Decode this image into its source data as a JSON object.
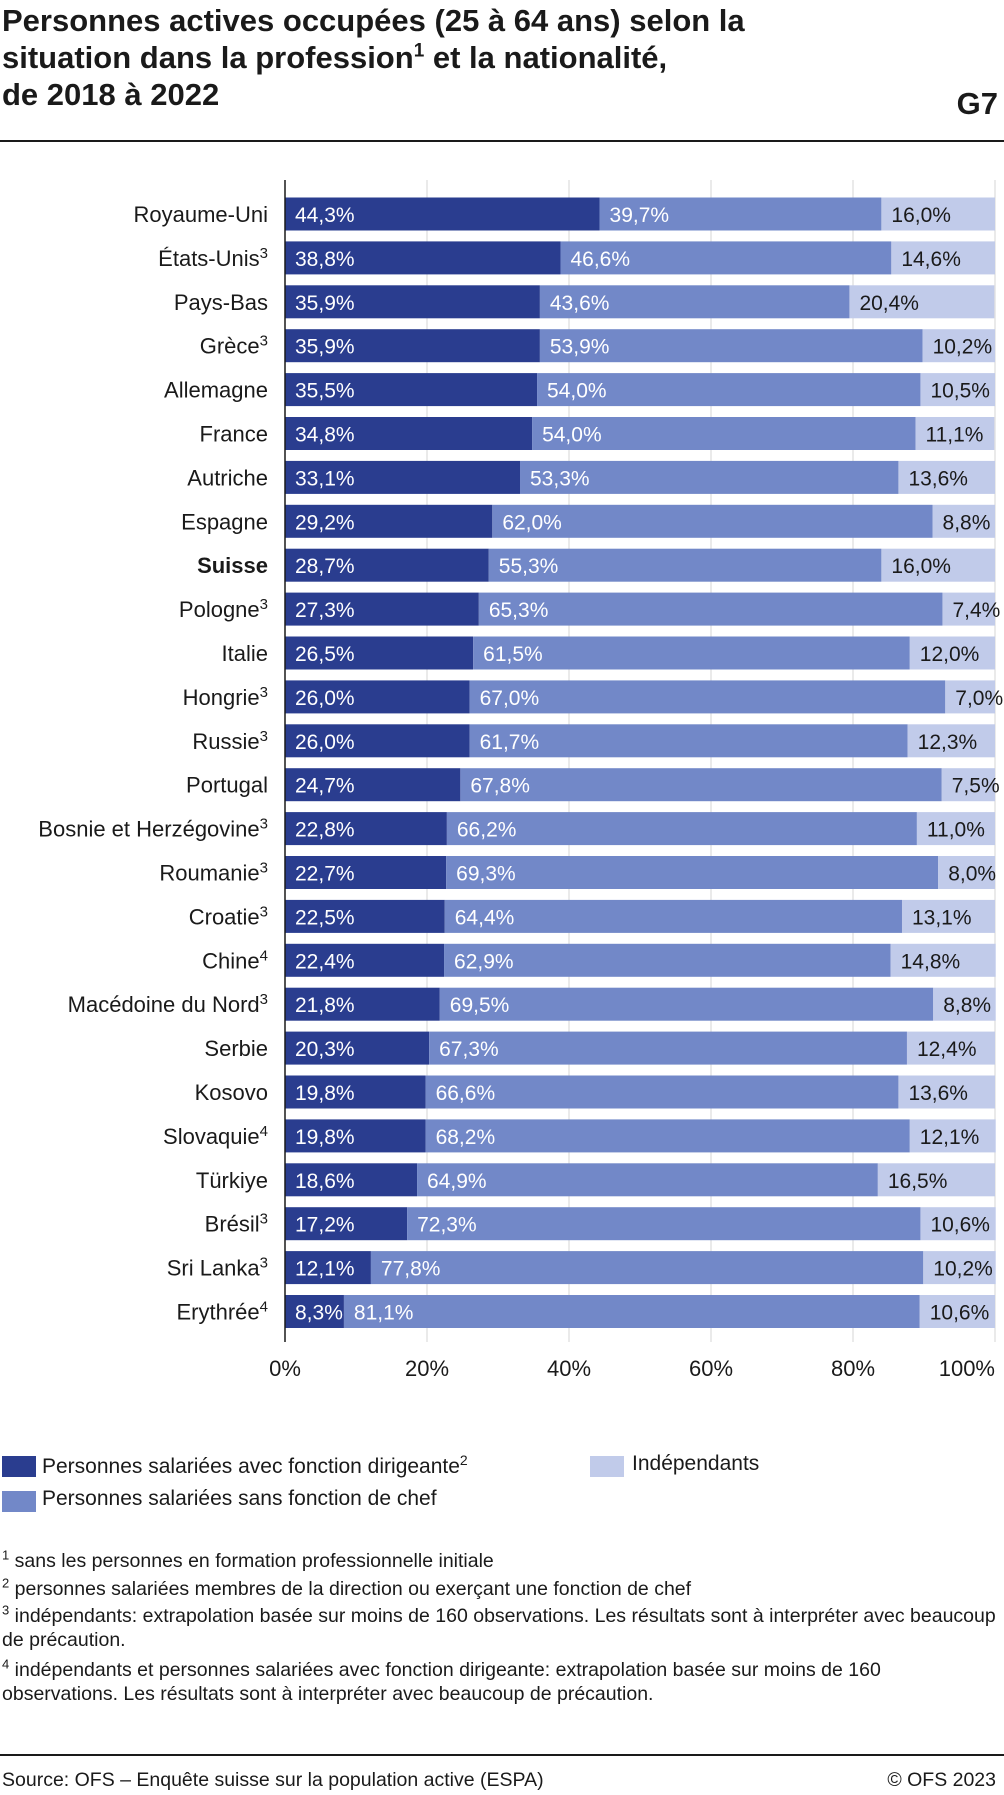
{
  "header": {
    "title_line1": "Personnes actives occupées (25 à 64 ans) selon la",
    "title_line2a": "situation dans la profession",
    "title_line2_sup": "1",
    "title_line2b": " et la nationalité,",
    "title_line3": "de 2018 à 2022",
    "chart_code": "G7"
  },
  "chart_data": {
    "type": "bar",
    "orientation": "horizontal",
    "stacked": true,
    "xlim": [
      0,
      100
    ],
    "ticks": [
      "0%",
      "20%",
      "40%",
      "60%",
      "80%",
      "100%"
    ],
    "grid": true,
    "categories": [
      {
        "label": "Royaume-Uni",
        "sup": ""
      },
      {
        "label": "États-Unis",
        "sup": "3"
      },
      {
        "label": "Pays-Bas",
        "sup": ""
      },
      {
        "label": "Grèce",
        "sup": "3"
      },
      {
        "label": "Allemagne",
        "sup": ""
      },
      {
        "label": "France",
        "sup": ""
      },
      {
        "label": "Autriche",
        "sup": ""
      },
      {
        "label": "Espagne",
        "sup": ""
      },
      {
        "label": "Suisse",
        "sup": "",
        "bold": true
      },
      {
        "label": "Pologne",
        "sup": "3"
      },
      {
        "label": "Italie",
        "sup": ""
      },
      {
        "label": "Hongrie",
        "sup": "3"
      },
      {
        "label": "Russie",
        "sup": "3"
      },
      {
        "label": "Portugal",
        "sup": ""
      },
      {
        "label": "Bosnie et Herzégovine",
        "sup": "3"
      },
      {
        "label": "Roumanie",
        "sup": "3"
      },
      {
        "label": "Croatie",
        "sup": "3"
      },
      {
        "label": "Chine",
        "sup": "4"
      },
      {
        "label": "Macédoine du Nord",
        "sup": "3"
      },
      {
        "label": "Serbie",
        "sup": ""
      },
      {
        "label": "Kosovo",
        "sup": ""
      },
      {
        "label": "Slovaquie",
        "sup": "4"
      },
      {
        "label": "Türkiye",
        "sup": ""
      },
      {
        "label": "Brésil",
        "sup": "3"
      },
      {
        "label": "Sri Lanka",
        "sup": "3"
      },
      {
        "label": "Erythrée",
        "sup": "4"
      }
    ],
    "series": [
      {
        "name": "Personnes salariées avec fonction dirigeante",
        "name_sup": "2",
        "color": "#2a3d8f",
        "values": [
          44.3,
          38.8,
          35.9,
          35.9,
          35.5,
          34.8,
          33.1,
          29.2,
          28.7,
          27.3,
          26.5,
          26.0,
          26.0,
          24.7,
          22.8,
          22.7,
          22.5,
          22.4,
          21.8,
          20.3,
          19.8,
          19.8,
          18.6,
          17.2,
          12.1,
          8.3
        ],
        "labels": [
          "44,3%",
          "38,8%",
          "35,9%",
          "35,9%",
          "35,5%",
          "34,8%",
          "33,1%",
          "29,2%",
          "28,7%",
          "27,3%",
          "26,5%",
          "26,0%",
          "26,0%",
          "24,7%",
          "22,8%",
          "22,7%",
          "22,5%",
          "22,4%",
          "21,8%",
          "20,3%",
          "19,8%",
          "19,8%",
          "18,6%",
          "17,2%",
          "12,1%",
          "8,3%"
        ]
      },
      {
        "name": "Personnes salariées sans fonction de chef",
        "name_sup": "",
        "color": "#7288c8",
        "values": [
          39.7,
          46.6,
          43.6,
          53.9,
          54.0,
          54.0,
          53.3,
          62.0,
          55.3,
          65.3,
          61.5,
          67.0,
          61.7,
          67.8,
          66.2,
          69.3,
          64.4,
          62.9,
          69.5,
          67.3,
          66.6,
          68.2,
          64.9,
          72.3,
          77.8,
          81.1
        ],
        "labels": [
          "39,7%",
          "46,6%",
          "43,6%",
          "53,9%",
          "54,0%",
          "54,0%",
          "53,3%",
          "62,0%",
          "55,3%",
          "65,3%",
          "61,5%",
          "67,0%",
          "61,7%",
          "67,8%",
          "66,2%",
          "69,3%",
          "64,4%",
          "62,9%",
          "69,5%",
          "67,3%",
          "66,6%",
          "68,2%",
          "64,9%",
          "72,3%",
          "77,8%",
          "81,1%"
        ]
      },
      {
        "name": "Indépendants",
        "name_sup": "",
        "color": "#c1cbea",
        "values": [
          16.0,
          14.6,
          20.4,
          10.2,
          10.5,
          11.1,
          13.6,
          8.8,
          16.0,
          7.4,
          12.0,
          7.0,
          12.3,
          7.5,
          11.0,
          8.0,
          13.1,
          14.8,
          8.8,
          12.4,
          13.6,
          12.1,
          16.5,
          10.6,
          10.2,
          10.6
        ],
        "labels": [
          "16,0%",
          "14,6%",
          "20,4%",
          "10,2%",
          "10,5%",
          "11,1%",
          "13,6%",
          "8,8%",
          "16,0%",
          "7,4%",
          "12,0%",
          "7,0%",
          "12,3%",
          "7,5%",
          "11,0%",
          "8,0%",
          "13,1%",
          "14,8%",
          "8,8%",
          "12,4%",
          "13,6%",
          "12,1%",
          "16,5%",
          "10,6%",
          "10,2%",
          "10,6%"
        ]
      }
    ]
  },
  "footnotes": [
    {
      "num": "1",
      "text": "sans les personnes en formation professionnelle initiale"
    },
    {
      "num": "2",
      "text": "personnes salariées membres de la direction ou exerçant une fonction de chef"
    },
    {
      "num": "3",
      "text": "indépendants: extrapolation basée sur moins de 160 observations. Les résultats sont à interpréter avec beaucoup de précaution."
    },
    {
      "num": "4",
      "text": "indépendants et personnes salariées avec fonction dirigeante: extrapolation basée sur moins de 160 observations. Les résultats sont à interpréter avec beaucoup de précaution."
    }
  ],
  "footer": {
    "source": "Source: OFS – Enquête suisse sur la population active (ESPA)",
    "copyright": "© OFS 2023"
  }
}
